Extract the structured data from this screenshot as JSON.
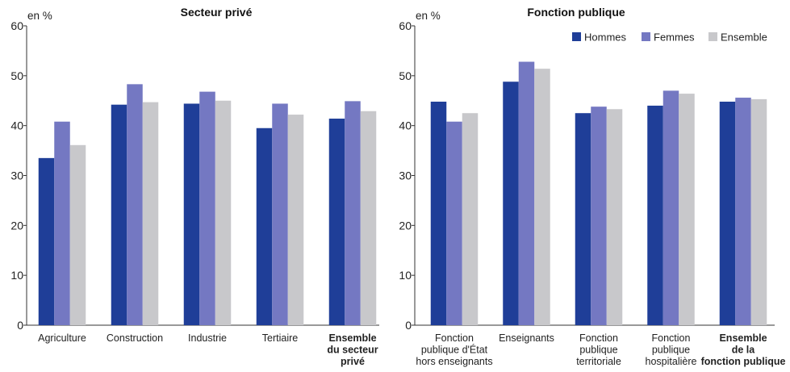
{
  "colors": {
    "Hommes": "#1f3e98",
    "Femmes": "#7478c2",
    "Ensemble": "#c8c8cb"
  },
  "chart_data": [
    {
      "type": "bar",
      "title": "Secteur privé",
      "unit_label": "en %",
      "ylim": [
        0,
        60
      ],
      "yticks": [
        0,
        10,
        20,
        30,
        40,
        50,
        60
      ],
      "grid": false,
      "legend": false,
      "categories": [
        {
          "lines": [
            "Agriculture"
          ],
          "bold": false
        },
        {
          "lines": [
            "Construction"
          ],
          "bold": false
        },
        {
          "lines": [
            "Industrie"
          ],
          "bold": false
        },
        {
          "lines": [
            "Tertiaire"
          ],
          "bold": false
        },
        {
          "lines": [
            "Ensemble",
            "du secteur",
            "privé"
          ],
          "bold": true
        }
      ],
      "series": [
        {
          "name": "Hommes",
          "values": [
            33.5,
            44.2,
            44.4,
            39.5,
            41.4
          ]
        },
        {
          "name": "Femmes",
          "values": [
            40.8,
            48.3,
            46.8,
            44.4,
            44.9
          ]
        },
        {
          "name": "Ensemble",
          "values": [
            36.1,
            44.7,
            45.0,
            42.2,
            42.9
          ]
        }
      ]
    },
    {
      "type": "bar",
      "title": "Fonction publique",
      "unit_label": "en %",
      "ylim": [
        0,
        60
      ],
      "yticks": [
        0,
        10,
        20,
        30,
        40,
        50,
        60
      ],
      "grid": false,
      "legend": true,
      "legend_position": "top-right",
      "categories": [
        {
          "lines": [
            "Fonction",
            "publique d'État",
            "hors enseignants"
          ],
          "bold": false
        },
        {
          "lines": [
            "Enseignants"
          ],
          "bold": false
        },
        {
          "lines": [
            "Fonction",
            "publique",
            "territoriale"
          ],
          "bold": false
        },
        {
          "lines": [
            "Fonction",
            "publique",
            "hospitalière"
          ],
          "bold": false
        },
        {
          "lines": [
            "Ensemble",
            "de la",
            "fonction publique"
          ],
          "bold": true
        }
      ],
      "series": [
        {
          "name": "Hommes",
          "values": [
            44.8,
            48.8,
            42.5,
            44.0,
            44.8
          ]
        },
        {
          "name": "Femmes",
          "values": [
            40.8,
            52.8,
            43.8,
            47.0,
            45.6
          ]
        },
        {
          "name": "Ensemble",
          "values": [
            42.5,
            51.4,
            43.3,
            46.4,
            45.3
          ]
        }
      ]
    }
  ]
}
